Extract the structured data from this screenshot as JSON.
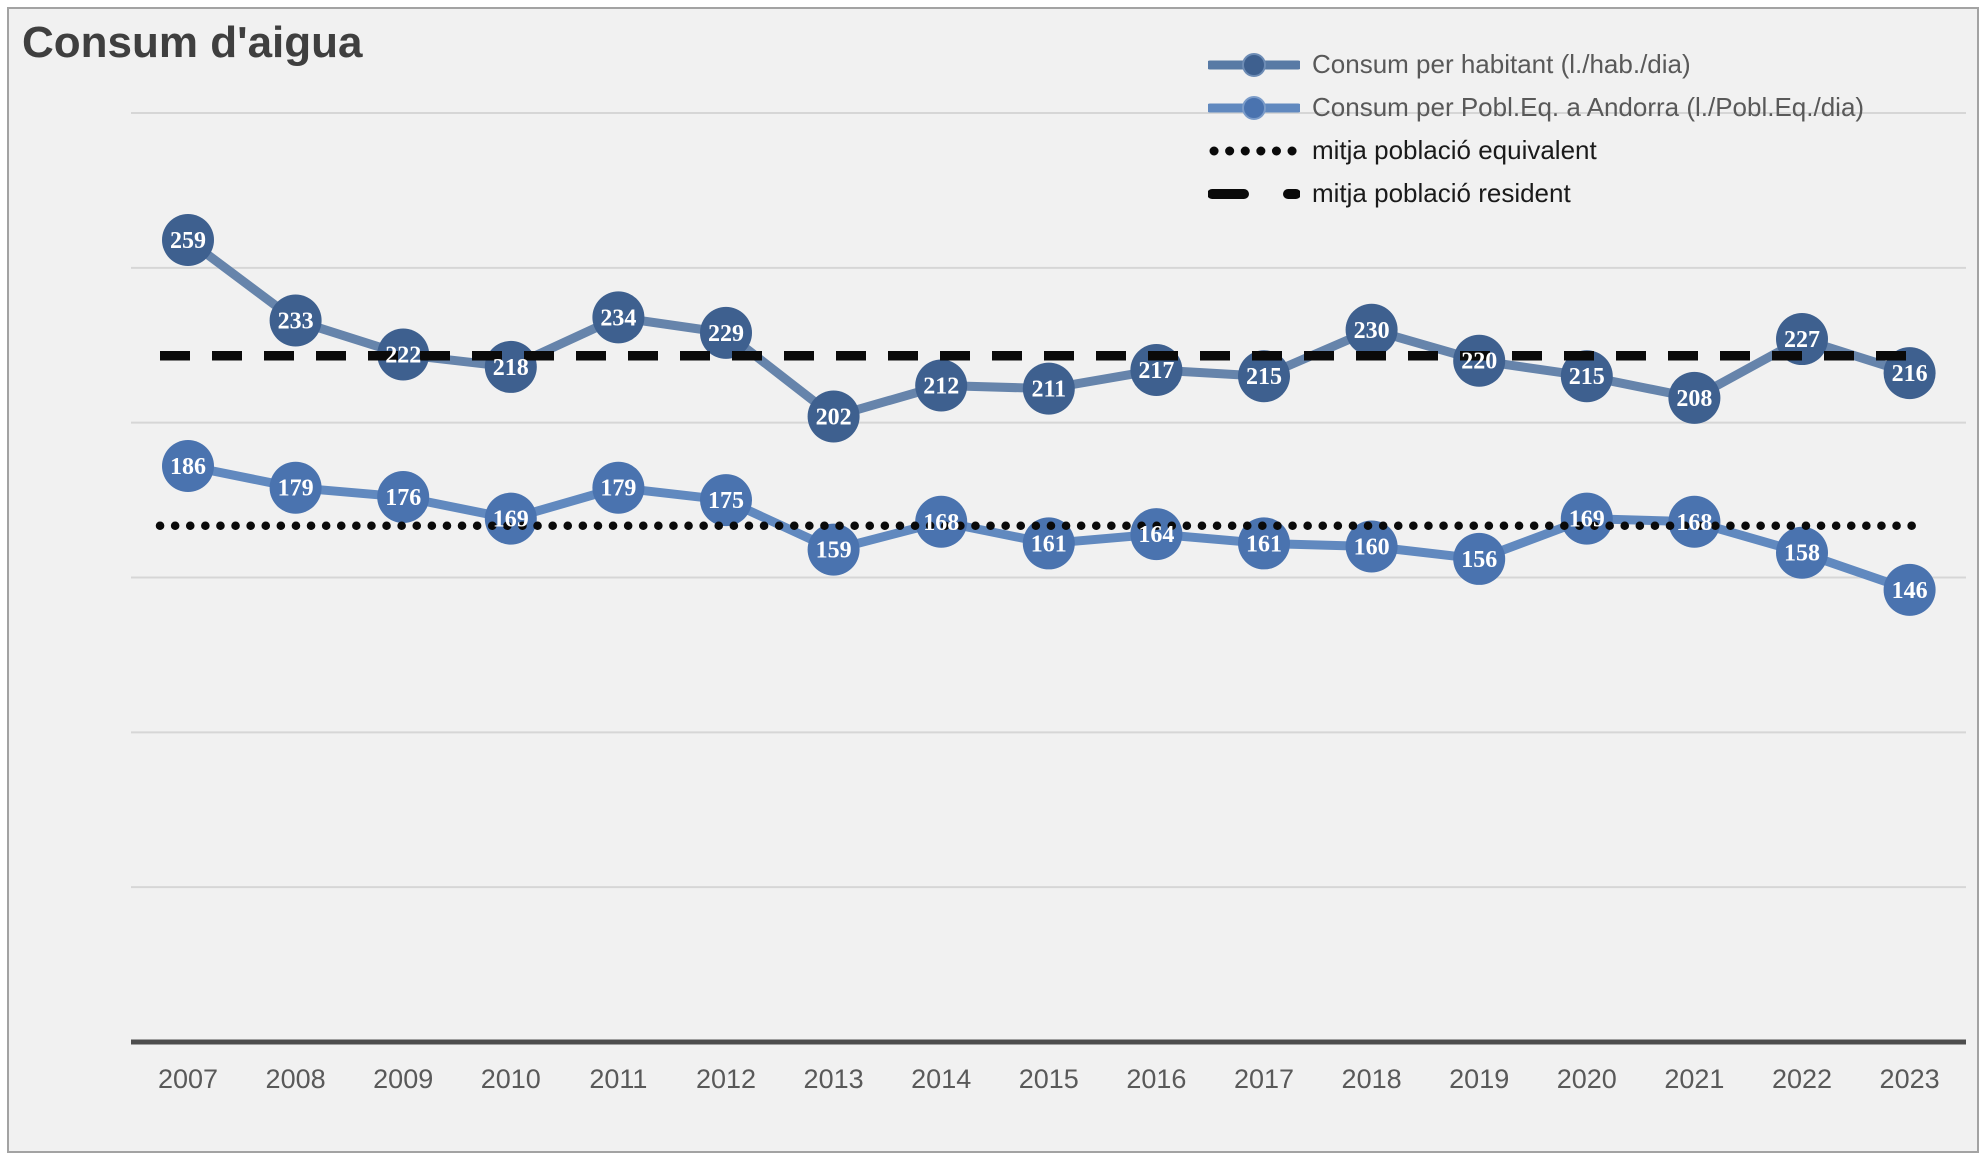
{
  "title": "Consum d'aigua",
  "legend": {
    "items": [
      {
        "label": "Consum per habitant (l./hab./dia)"
      },
      {
        "label": "Consum per Pobl.Eq. a Andorra (l./Pobl.Eq./dia)"
      },
      {
        "label": "mitja població equivalent"
      },
      {
        "label": "mitja població resident"
      }
    ]
  },
  "colors": {
    "series1_line": "#6684ab",
    "series1_marker": "#3e608f",
    "series2_line": "#6189bf",
    "series2_marker": "#4a73af",
    "reference_line": "#0a0a0a",
    "gridline": "#d6d6d6",
    "axis_line": "#4d4d4d",
    "marker_label": "#ffffff",
    "x_label": "#595959",
    "panel_background": "#f1f1f1",
    "panel_border": "#a3a3a3"
  },
  "chart_data": {
    "type": "line",
    "title": "Consum d'aigua",
    "categories": [
      "2007",
      "2008",
      "2009",
      "2010",
      "2011",
      "2012",
      "2013",
      "2014",
      "2015",
      "2016",
      "2017",
      "2018",
      "2019",
      "2020",
      "2021",
      "2022",
      "2023"
    ],
    "series": [
      {
        "name": "Consum per habitant (l./hab./dia)",
        "values": [
          259,
          233,
          222,
          218,
          234,
          229,
          202,
          212,
          211,
          217,
          215,
          230,
          220,
          215,
          208,
          227,
          216
        ]
      },
      {
        "name": "Consum per Pobl.Eq. a Andorra (l./Pobl.Eq./dia)",
        "values": [
          186,
          179,
          176,
          169,
          179,
          175,
          159,
          168,
          161,
          164,
          161,
          160,
          156,
          169,
          168,
          158,
          146
        ]
      }
    ],
    "reference_lines": [
      {
        "name": "mitja població equivalent",
        "style": "dotted",
        "value": 166.7
      },
      {
        "name": "mitja població resident",
        "style": "dashed",
        "value": 221.6
      }
    ],
    "xlabel": "",
    "ylabel": "",
    "ylim": [
      0,
      300
    ],
    "gridline_interval": 50,
    "grid": true,
    "y_tick_labels_visible": false,
    "data_labels": true,
    "legend_position": "top-right"
  }
}
